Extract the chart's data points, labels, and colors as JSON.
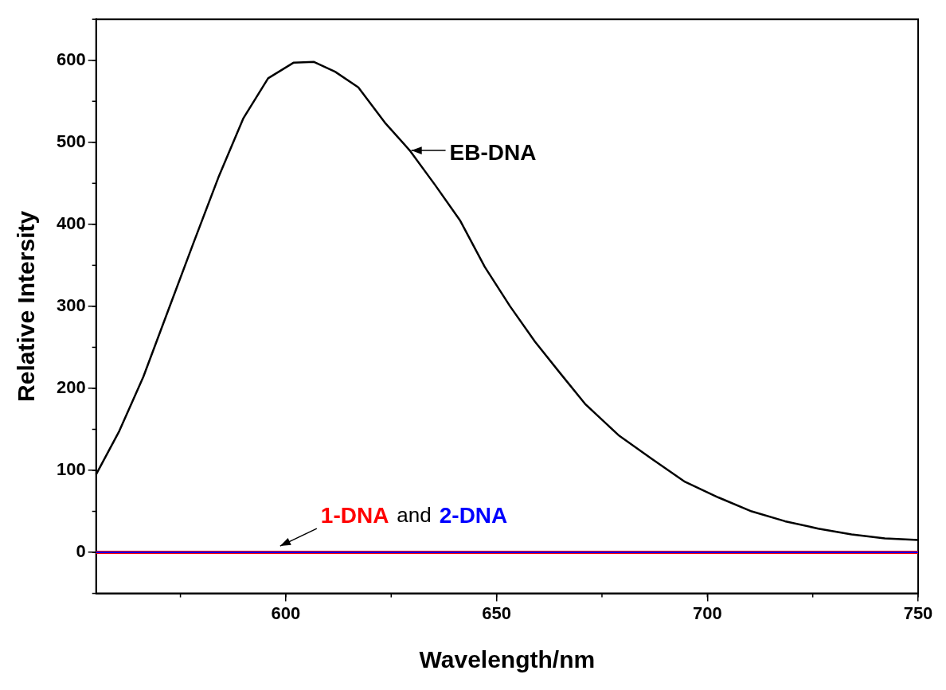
{
  "chart_data": {
    "type": "line",
    "xlabel": "Wavelength/nm",
    "ylabel": "Relative Intersity",
    "xlim": [
      555,
      750
    ],
    "xticks": [
      600,
      650,
      700,
      750
    ],
    "ylim": [
      -50,
      650
    ],
    "yticks": [
      0,
      100,
      200,
      300,
      400,
      500,
      600
    ],
    "grid": false,
    "legend": "top right",
    "marker": "none",
    "line_style": "solid",
    "series": [
      {
        "name": "EB-DNA",
        "color": "#000000",
        "x": [
          555,
          560.5,
          566.2,
          572.1,
          578,
          584,
          589.9,
          595.8,
          601.8,
          606.7,
          611.7,
          617.2,
          623.5,
          629.4,
          635.4,
          641.3,
          647.2,
          653.2,
          659.1,
          665,
          671,
          678.9,
          686.8,
          694.7,
          702.6,
          710.5,
          718.4,
          726.3,
          734.2,
          742.1,
          750
        ],
        "values": [
          95,
          148,
          214,
          295,
          376,
          457,
          529,
          578,
          597,
          598,
          586,
          567,
          524,
          490,
          448,
          405,
          348,
          300,
          257,
          219,
          181,
          143,
          114,
          86,
          67,
          50,
          38,
          29,
          22,
          17,
          15
        ]
      },
      {
        "name": "1-DNA",
        "color": "#ff0000",
        "x": [
          555,
          750
        ],
        "values": [
          0,
          0
        ]
      },
      {
        "name": "2-DNA",
        "color": "#0000ff",
        "x": [
          555,
          750
        ],
        "values": [
          0,
          0
        ]
      }
    ],
    "annotations": [
      "and"
    ]
  }
}
